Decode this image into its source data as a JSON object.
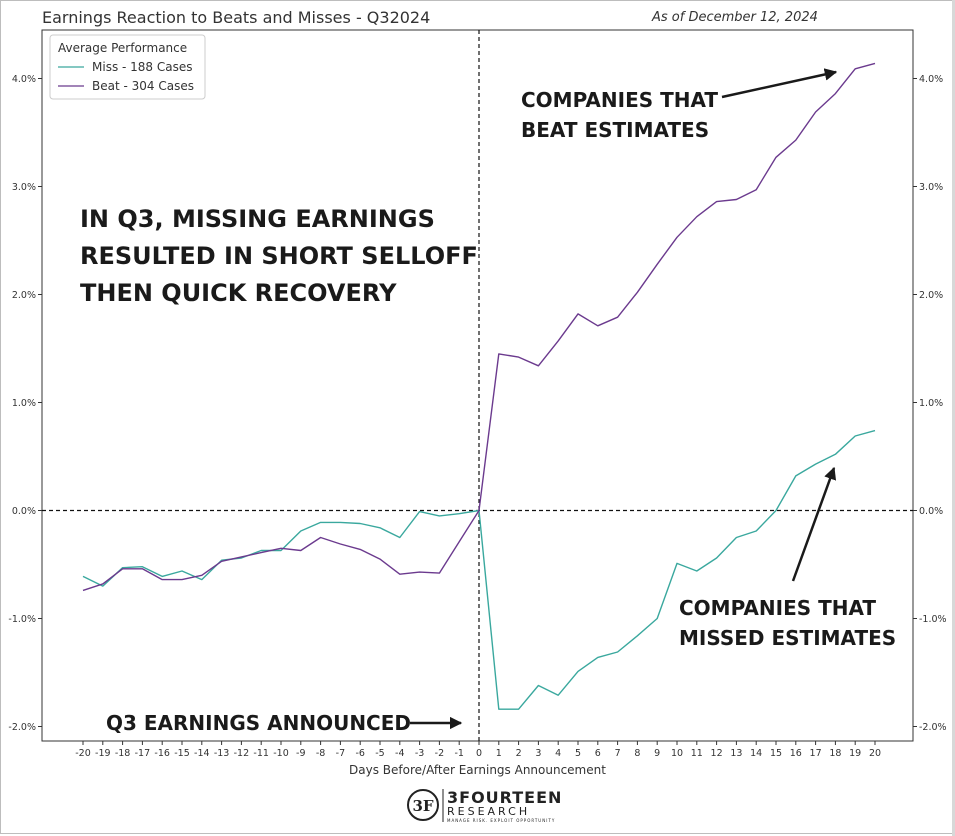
{
  "header": {
    "title": "Earnings Reaction to Beats and Misses - Q32024",
    "as_of": "As of December 12, 2024"
  },
  "chart_data": {
    "type": "line",
    "title": "Earnings Reaction to Beats and Misses - Q32024",
    "xlabel": "Days Before/After Earnings Announcement",
    "ylabel": "",
    "x": [
      -20,
      -19,
      -18,
      -17,
      -16,
      -15,
      -14,
      -13,
      -12,
      -11,
      -10,
      -9,
      -8,
      -7,
      -6,
      -5,
      -4,
      -3,
      -2,
      -1,
      0,
      1,
      2,
      3,
      4,
      5,
      6,
      7,
      8,
      9,
      10,
      11,
      12,
      13,
      14,
      15,
      16,
      17,
      18,
      19,
      20
    ],
    "ylim": [
      -2.15,
      4.5
    ],
    "yticks": [
      -2.0,
      -1.0,
      0.0,
      1.0,
      2.0,
      3.0,
      4.0
    ],
    "ytick_labels": [
      "-2.0%",
      "-1.0%",
      "0.0%",
      "1.0%",
      "2.0%",
      "3.0%",
      "4.0%"
    ],
    "legend_title": "Average Performance",
    "legend_position": "top-left",
    "series": [
      {
        "name": "Miss - 188 Cases",
        "color": "#3aa89e",
        "values": [
          -0.61,
          -0.7,
          -0.53,
          -0.52,
          -0.61,
          -0.56,
          -0.64,
          -0.46,
          -0.44,
          -0.37,
          -0.37,
          -0.19,
          -0.11,
          -0.11,
          -0.12,
          -0.16,
          -0.25,
          -0.01,
          -0.05,
          -0.03,
          0.0,
          -1.84,
          -1.84,
          -1.62,
          -1.71,
          -1.49,
          -1.36,
          -1.31,
          -1.16,
          -1.0,
          -0.49,
          -0.56,
          -0.44,
          -0.25,
          -0.19,
          0.0,
          0.32,
          0.43,
          0.52,
          0.69,
          0.74
        ]
      },
      {
        "name": "Beat - 304 Cases",
        "color": "#6b3a8e",
        "values": [
          -0.74,
          -0.68,
          -0.54,
          -0.54,
          -0.64,
          -0.64,
          -0.6,
          -0.47,
          -0.43,
          -0.39,
          -0.35,
          -0.37,
          -0.25,
          -0.31,
          -0.36,
          -0.45,
          -0.59,
          -0.57,
          -0.58,
          -0.29,
          0.0,
          1.45,
          1.42,
          1.34,
          1.57,
          1.82,
          1.71,
          1.79,
          2.02,
          2.28,
          2.53,
          2.72,
          2.86,
          2.88,
          2.97,
          3.27,
          3.43,
          3.69,
          3.86,
          4.09,
          4.14
        ]
      }
    ],
    "reference_lines": [
      {
        "axis": "x",
        "value": 0,
        "style": "dashed"
      },
      {
        "axis": "y",
        "value": 0,
        "style": "dashed"
      }
    ],
    "annotations": [
      {
        "id": "main",
        "lines": [
          "IN Q3, MISSING EARNINGS",
          "RESULTED IN SHORT SELLOFF",
          "THEN QUICK RECOVERY"
        ]
      },
      {
        "id": "beat",
        "lines": [
          "COMPANIES THAT",
          "BEAT ESTIMATES"
        ]
      },
      {
        "id": "miss",
        "lines": [
          "COMPANIES THAT",
          "MISSED ESTIMATES"
        ]
      },
      {
        "id": "announced",
        "lines": [
          "Q3 EARNINGS ANNOUNCED"
        ]
      }
    ]
  },
  "branding": {
    "logo_mark": "3F",
    "name": "3FOURTEEN",
    "sub": "RESEARCH",
    "tagline": "MANAGE RISK. EXPLOIT OPPORTUNITY"
  }
}
